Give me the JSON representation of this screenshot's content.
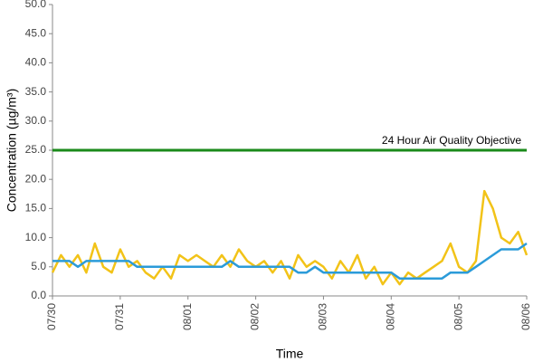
{
  "chart_data": {
    "type": "line",
    "y_label": "Concentration (µg/m³)",
    "x_label": "Time",
    "categories": [
      "07/30",
      null,
      null,
      null,
      null,
      null,
      null,
      null,
      "07/31",
      null,
      null,
      null,
      null,
      null,
      null,
      null,
      "08/01",
      null,
      null,
      null,
      null,
      null,
      null,
      null,
      "08/02",
      null,
      null,
      null,
      null,
      null,
      null,
      null,
      "08/03",
      null,
      null,
      null,
      null,
      null,
      null,
      null,
      "08/04",
      null,
      null,
      null,
      null,
      null,
      null,
      null,
      "08/05",
      null,
      null,
      null,
      null,
      null,
      null,
      null,
      "08/06"
    ],
    "series": [
      {
        "color": "#f2c318",
        "values": [
          4,
          7,
          5,
          7,
          4,
          9,
          5,
          4,
          8,
          5,
          6,
          4,
          3,
          5,
          3,
          7,
          6,
          7,
          6,
          5,
          7,
          5,
          8,
          6,
          5,
          6,
          4,
          6,
          3,
          7,
          5,
          6,
          5,
          3,
          6,
          4,
          7,
          3,
          5,
          2,
          4,
          2,
          4,
          3,
          4,
          5,
          6,
          9,
          5,
          4,
          6,
          18,
          15,
          10,
          9,
          11,
          7
        ]
      },
      {
        "color": "#2b9bd9",
        "values": [
          6,
          6,
          6,
          5,
          6,
          6,
          6,
          6,
          6,
          6,
          5,
          5,
          5,
          5,
          5,
          5,
          5,
          5,
          5,
          5,
          5,
          6,
          5,
          5,
          5,
          5,
          5,
          5,
          5,
          4,
          4,
          5,
          4,
          4,
          4,
          4,
          4,
          4,
          4,
          4,
          4,
          3,
          3,
          3,
          3,
          3,
          3,
          4,
          4,
          4,
          5,
          6,
          7,
          8,
          8,
          8,
          9
        ]
      }
    ],
    "annotations": [
      {
        "text": "24 Hour Air Quality Objective",
        "y": 25,
        "color": "#1a8a1a"
      }
    ],
    "ylim": [
      0,
      50
    ],
    "yticks": [
      {
        "value": 0,
        "label": "0.0"
      },
      {
        "value": 5,
        "label": "5.0"
      },
      {
        "value": 10,
        "label": "10.0"
      },
      {
        "value": 15,
        "label": "15.0"
      },
      {
        "value": 20,
        "label": "20.0"
      },
      {
        "value": 25,
        "label": "25.0"
      },
      {
        "value": 30,
        "label": "30.0"
      },
      {
        "value": 35,
        "label": "35.0"
      },
      {
        "value": 40,
        "label": "40.0"
      },
      {
        "value": 45,
        "label": "45.0"
      },
      {
        "value": 50,
        "label": "50.0"
      }
    ],
    "grid": false
  }
}
